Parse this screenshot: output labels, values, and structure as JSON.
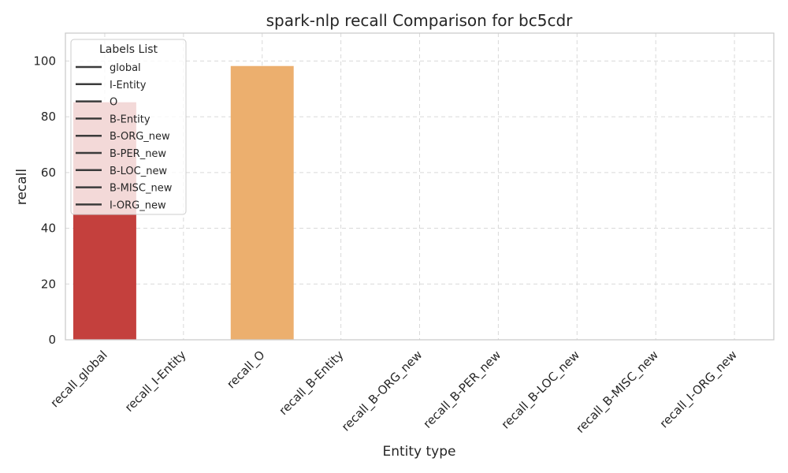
{
  "chart_data": {
    "type": "bar",
    "title": "spark-nlp recall Comparison for bc5cdr",
    "xlabel": "Entity type",
    "ylabel": "recall",
    "categories": [
      "recall_global",
      "recall_I-Entity",
      "recall_O",
      "recall_B-Entity",
      "recall_B-ORG_new",
      "recall_B-PER_new",
      "recall_B-LOC_new",
      "recall_B-MISC_new",
      "recall_I-ORG_new"
    ],
    "values": [
      85.2,
      0,
      98.2,
      0,
      0,
      0,
      0,
      0,
      0
    ],
    "bar_colors": [
      "#c4403d",
      "#f2a97a",
      "#ecaf6e",
      "#f2a97a",
      "#f2a97a",
      "#f2a97a",
      "#f2a97a",
      "#f2a97a",
      "#f2a97a"
    ],
    "ylim": [
      0,
      110
    ],
    "yticks": [
      0,
      20,
      40,
      60,
      80,
      100
    ],
    "grid": true,
    "legend": {
      "title": "Labels List",
      "placement": "top-left",
      "entries": [
        "global",
        "I-Entity",
        "O",
        "B-Entity",
        "B-ORG_new",
        "B-PER_new",
        "B-LOC_new",
        "B-MISC_new",
        "I-ORG_new"
      ],
      "line_color": "#3b3b3b"
    }
  }
}
